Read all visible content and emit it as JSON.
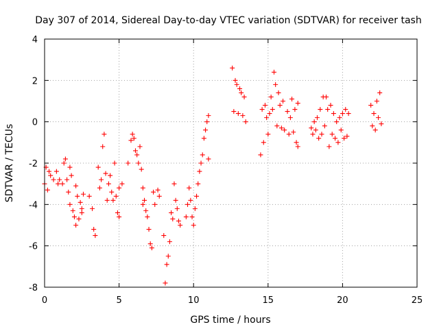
{
  "chart_data": {
    "type": "scatter",
    "title": "Day 307 of 2014, Sidereal Day-to-day VTEC variation (SDTVAR) for receiver tash",
    "xlabel": "GPS time / hours",
    "ylabel": "SDTVAR / TECUs",
    "xlim": [
      0,
      25
    ],
    "ylim": [
      -8,
      4
    ],
    "x_ticks": [
      "0",
      "5",
      "10",
      "15",
      "20",
      "25"
    ],
    "y_ticks": [
      "-8",
      "-6",
      "-4",
      "-2",
      "0",
      "2",
      "4"
    ],
    "grid": true,
    "marker": "plus",
    "color": "#ff0000",
    "series": [
      {
        "points": [
          [
            0.0,
            -3.0
          ],
          [
            0.1,
            -2.2
          ],
          [
            0.2,
            -3.3
          ],
          [
            0.3,
            -2.4
          ],
          [
            0.4,
            -2.6
          ],
          [
            0.6,
            -2.8
          ],
          [
            0.8,
            -2.4
          ],
          [
            0.9,
            -3.0
          ],
          [
            1.0,
            -2.8
          ],
          [
            1.2,
            -3.0
          ],
          [
            1.3,
            -2.0
          ],
          [
            1.4,
            -1.8
          ],
          [
            1.5,
            -2.8
          ],
          [
            1.6,
            -3.4
          ],
          [
            1.7,
            -2.2
          ],
          [
            1.8,
            -2.6
          ],
          [
            1.7,
            -4.0
          ],
          [
            1.9,
            -4.3
          ],
          [
            2.0,
            -4.6
          ],
          [
            2.1,
            -3.1
          ],
          [
            2.2,
            -3.6
          ],
          [
            2.1,
            -5.0
          ],
          [
            2.3,
            -4.7
          ],
          [
            2.4,
            -3.9
          ],
          [
            2.5,
            -4.2
          ],
          [
            2.6,
            -3.5
          ],
          [
            2.5,
            -4.4
          ],
          [
            3.0,
            -3.6
          ],
          [
            3.2,
            -4.2
          ],
          [
            3.3,
            -5.2
          ],
          [
            3.4,
            -5.5
          ],
          [
            3.6,
            -2.2
          ],
          [
            3.7,
            -3.2
          ],
          [
            3.8,
            -2.8
          ],
          [
            3.9,
            -1.2
          ],
          [
            4.0,
            -0.6
          ],
          [
            4.1,
            -2.5
          ],
          [
            4.2,
            -3.8
          ],
          [
            4.3,
            -3.0
          ],
          [
            4.4,
            -2.6
          ],
          [
            4.5,
            -3.4
          ],
          [
            4.6,
            -3.8
          ],
          [
            4.7,
            -2.0
          ],
          [
            4.8,
            -3.6
          ],
          [
            4.9,
            -4.4
          ],
          [
            5.0,
            -4.6
          ],
          [
            5.0,
            -3.2
          ],
          [
            5.2,
            -3.0
          ],
          [
            5.6,
            -2.0
          ],
          [
            5.8,
            -0.9
          ],
          [
            5.9,
            -0.6
          ],
          [
            6.0,
            -0.8
          ],
          [
            6.1,
            -1.4
          ],
          [
            6.2,
            -1.6
          ],
          [
            6.3,
            -2.0
          ],
          [
            6.4,
            -1.2
          ],
          [
            6.5,
            -2.3
          ],
          [
            6.6,
            -3.2
          ],
          [
            6.6,
            -4.0
          ],
          [
            6.7,
            -3.8
          ],
          [
            6.8,
            -4.3
          ],
          [
            6.9,
            -4.6
          ],
          [
            7.0,
            -5.2
          ],
          [
            7.1,
            -5.9
          ],
          [
            7.2,
            -6.1
          ],
          [
            7.3,
            -3.4
          ],
          [
            7.4,
            -4.0
          ],
          [
            7.6,
            -3.3
          ],
          [
            7.7,
            -3.6
          ],
          [
            8.0,
            -5.5
          ],
          [
            8.1,
            -7.8
          ],
          [
            8.2,
            -6.9
          ],
          [
            8.3,
            -6.5
          ],
          [
            8.4,
            -5.8
          ],
          [
            8.5,
            -4.4
          ],
          [
            8.6,
            -4.7
          ],
          [
            8.7,
            -3.0
          ],
          [
            8.8,
            -3.8
          ],
          [
            8.9,
            -4.2
          ],
          [
            9.0,
            -4.8
          ],
          [
            9.1,
            -5.0
          ],
          [
            9.5,
            -4.6
          ],
          [
            9.6,
            -4.0
          ],
          [
            9.7,
            -3.2
          ],
          [
            9.8,
            -3.8
          ],
          [
            9.9,
            -4.6
          ],
          [
            10.0,
            -5.0
          ],
          [
            10.1,
            -4.2
          ],
          [
            10.2,
            -3.6
          ],
          [
            10.3,
            -3.0
          ],
          [
            10.4,
            -2.4
          ],
          [
            10.5,
            -2.0
          ],
          [
            10.6,
            -1.6
          ],
          [
            10.7,
            -0.8
          ],
          [
            10.8,
            -0.4
          ],
          [
            10.9,
            0.0
          ],
          [
            11.0,
            0.3
          ],
          [
            11.0,
            -1.8
          ],
          [
            12.6,
            2.6
          ],
          [
            12.7,
            0.5
          ],
          [
            12.8,
            2.0
          ],
          [
            12.9,
            1.8
          ],
          [
            13.0,
            0.4
          ],
          [
            13.1,
            1.6
          ],
          [
            13.2,
            1.4
          ],
          [
            13.3,
            0.3
          ],
          [
            13.4,
            1.2
          ],
          [
            13.5,
            0.0
          ],
          [
            14.5,
            -1.6
          ],
          [
            14.6,
            0.6
          ],
          [
            14.7,
            -1.0
          ],
          [
            14.8,
            0.8
          ],
          [
            14.9,
            0.2
          ],
          [
            15.0,
            -0.6
          ],
          [
            15.1,
            0.4
          ],
          [
            15.2,
            1.2
          ],
          [
            15.3,
            0.6
          ],
          [
            15.4,
            2.4
          ],
          [
            15.5,
            1.8
          ],
          [
            15.6,
            -0.2
          ],
          [
            15.7,
            1.4
          ],
          [
            15.8,
            0.8
          ],
          [
            15.9,
            -0.3
          ],
          [
            16.0,
            1.0
          ],
          [
            16.1,
            -0.4
          ],
          [
            16.3,
            0.5
          ],
          [
            16.4,
            -0.6
          ],
          [
            16.5,
            0.2
          ],
          [
            16.6,
            1.1
          ],
          [
            16.7,
            -0.5
          ],
          [
            16.8,
            0.6
          ],
          [
            16.9,
            -1.0
          ],
          [
            17.0,
            0.9
          ],
          [
            17.0,
            -1.2
          ],
          [
            17.9,
            -0.3
          ],
          [
            18.0,
            -0.6
          ],
          [
            18.1,
            0.0
          ],
          [
            18.2,
            -0.4
          ],
          [
            18.3,
            0.2
          ],
          [
            18.4,
            -0.8
          ],
          [
            18.5,
            0.6
          ],
          [
            18.6,
            -0.6
          ],
          [
            18.7,
            1.2
          ],
          [
            18.8,
            -0.2
          ],
          [
            18.9,
            1.2
          ],
          [
            19.0,
            0.6
          ],
          [
            19.1,
            -1.2
          ],
          [
            19.2,
            0.8
          ],
          [
            19.3,
            -0.6
          ],
          [
            19.4,
            0.4
          ],
          [
            19.5,
            -0.8
          ],
          [
            19.6,
            0.0
          ],
          [
            19.7,
            -1.0
          ],
          [
            19.8,
            0.2
          ],
          [
            19.9,
            -0.4
          ],
          [
            20.0,
            0.4
          ],
          [
            20.1,
            -0.8
          ],
          [
            20.2,
            0.6
          ],
          [
            20.3,
            -0.7
          ],
          [
            20.4,
            0.4
          ],
          [
            21.9,
            0.8
          ],
          [
            22.0,
            -0.2
          ],
          [
            22.1,
            0.4
          ],
          [
            22.2,
            -0.4
          ],
          [
            22.3,
            1.0
          ],
          [
            22.4,
            0.2
          ],
          [
            22.5,
            1.4
          ],
          [
            22.6,
            -0.1
          ]
        ]
      }
    ]
  }
}
